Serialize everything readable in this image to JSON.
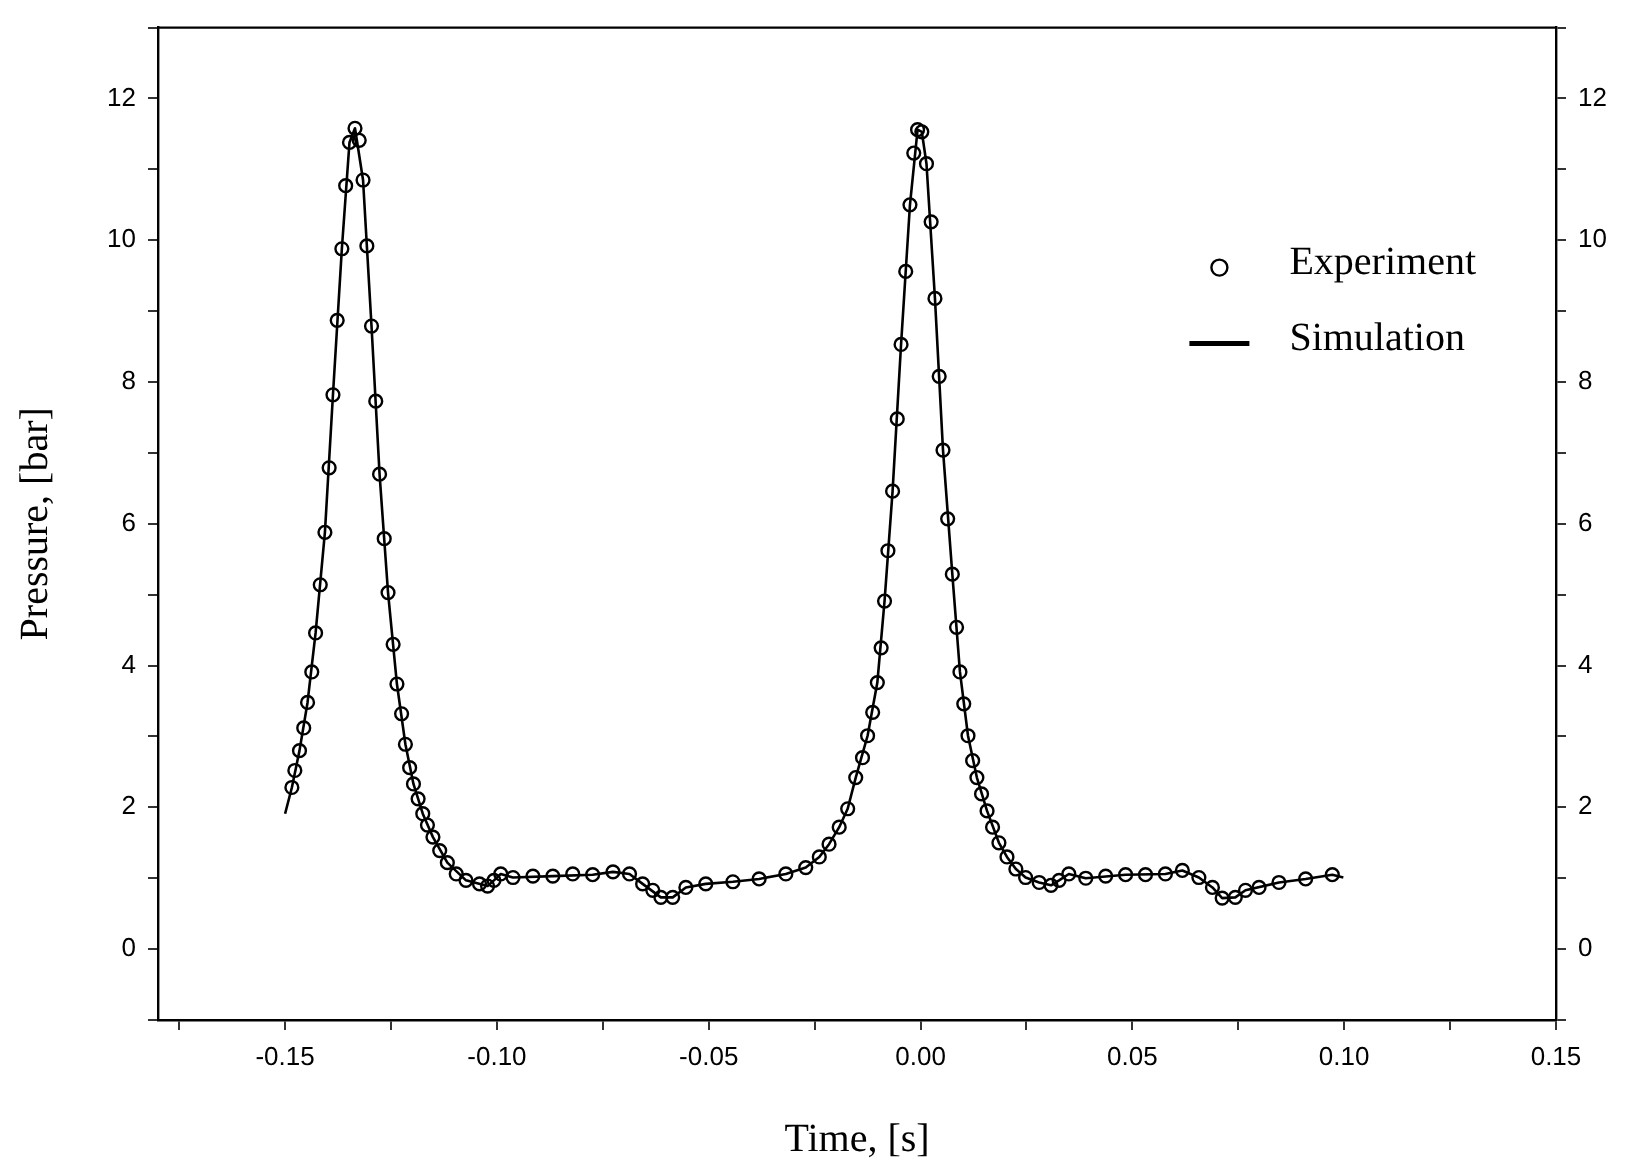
{
  "chart_data": {
    "type": "scatter",
    "xlabel": "Time, [s]",
    "ylabel": "Pressure, [bar]",
    "xlim": [
      -0.18,
      0.15
    ],
    "xticks": [
      {
        "value": -0.175,
        "label": null
      },
      {
        "value": -0.15,
        "label": "-0.15"
      },
      {
        "value": -0.125,
        "label": null
      },
      {
        "value": -0.1,
        "label": "-0.10"
      },
      {
        "value": -0.075,
        "label": null
      },
      {
        "value": -0.05,
        "label": "-0.05"
      },
      {
        "value": -0.025,
        "label": null
      },
      {
        "value": 0,
        "label": "0.00"
      },
      {
        "value": 0.025,
        "label": null
      },
      {
        "value": 0.05,
        "label": "0.05"
      },
      {
        "value": 0.075,
        "label": null
      },
      {
        "value": 0.1,
        "label": "0.10"
      },
      {
        "value": 0.125,
        "label": null
      },
      {
        "value": 0.15,
        "label": "0.15"
      }
    ],
    "ylim": [
      -1,
      13
    ],
    "yticks": [
      {
        "value": -1,
        "label": null
      },
      0,
      {
        "value": 1,
        "label": null
      },
      2,
      {
        "value": 3,
        "label": null
      },
      4,
      {
        "value": 5,
        "label": null
      },
      6,
      {
        "value": 7,
        "label": null
      },
      8,
      {
        "value": 9,
        "label": null
      },
      10,
      {
        "value": 11,
        "label": null
      },
      12,
      {
        "value": 13,
        "label": null
      }
    ],
    "y2lim": [
      -1,
      13
    ],
    "y2ticks": [
      {
        "value": -1,
        "label": null
      },
      0,
      {
        "value": 1,
        "label": null
      },
      2,
      {
        "value": 3,
        "label": null
      },
      4,
      {
        "value": 5,
        "label": null
      },
      6,
      {
        "value": 7,
        "label": null
      },
      8,
      {
        "value": 9,
        "label": null
      },
      10,
      {
        "value": 11,
        "label": null
      },
      12,
      {
        "value": 13,
        "label": null
      }
    ],
    "grid": false,
    "legend": "top right",
    "series": [
      {
        "name": "Experiment",
        "type": "scatter",
        "marker": "circle",
        "color": "#000000",
        "x": [
          -0.1484,
          -0.1477,
          -0.1466,
          -0.1456,
          -0.1447,
          -0.1437,
          -0.1428,
          -0.1417,
          -0.1406,
          -0.1396,
          -0.1387,
          -0.1377,
          -0.1366,
          -0.1357,
          -0.1348,
          -0.1335,
          -0.1325,
          -0.1316,
          -0.1307,
          -0.1296,
          -0.1286,
          -0.1277,
          -0.1266,
          -0.1257,
          -0.1245,
          -0.1236,
          -0.1225,
          -0.1216,
          -0.1206,
          -0.1197,
          -0.1186,
          -0.1175,
          -0.1164,
          -0.1151,
          -0.1135,
          -0.1117,
          -0.1096,
          -0.1073,
          -0.1041,
          -0.1022,
          -0.1007,
          -0.0991,
          -0.0962,
          -0.0915,
          -0.0868,
          -0.0821,
          -0.0774,
          -0.0726,
          -0.0687,
          -0.0656,
          -0.0632,
          -0.0613,
          -0.0585,
          -0.0554,
          -0.0507,
          -0.0443,
          -0.0381,
          -0.0318,
          -0.0271,
          -0.0239,
          -0.0216,
          -0.0192,
          -0.0172,
          -0.0153,
          -0.0137,
          -0.0125,
          -0.0113,
          -0.0102,
          -0.0093,
          -0.0085,
          -0.0077,
          -0.0066,
          -0.0055,
          -0.0046,
          -0.0035,
          -0.0025,
          -0.0016,
          -0.0007,
          0.0003,
          0.0014,
          0.0025,
          0.0034,
          0.0044,
          0.0053,
          0.0064,
          0.0075,
          0.0085,
          0.0093,
          0.0102,
          0.0112,
          0.0123,
          0.0133,
          0.0144,
          0.0157,
          0.017,
          0.0185,
          0.0204,
          0.0225,
          0.0248,
          0.028,
          0.0308,
          0.0327,
          0.035,
          0.039,
          0.0437,
          0.0484,
          0.0531,
          0.0578,
          0.0618,
          0.0657,
          0.0689,
          0.0712,
          0.0743,
          0.0767,
          0.0799,
          0.0846,
          0.0909,
          0.0972
        ],
        "values": [
          2.28,
          2.52,
          2.8,
          3.12,
          3.48,
          3.91,
          4.46,
          5.14,
          5.88,
          6.79,
          7.82,
          8.87,
          9.88,
          10.77,
          11.38,
          11.58,
          11.41,
          10.85,
          9.92,
          8.79,
          7.73,
          6.7,
          5.79,
          5.03,
          4.3,
          3.74,
          3.32,
          2.89,
          2.56,
          2.33,
          2.12,
          1.91,
          1.75,
          1.58,
          1.39,
          1.22,
          1.06,
          0.97,
          0.92,
          0.89,
          0.97,
          1.06,
          1.01,
          1.03,
          1.03,
          1.06,
          1.05,
          1.09,
          1.06,
          0.92,
          0.83,
          0.73,
          0.73,
          0.87,
          0.92,
          0.95,
          0.99,
          1.06,
          1.15,
          1.3,
          1.48,
          1.72,
          1.98,
          2.42,
          2.7,
          3.01,
          3.34,
          3.76,
          4.25,
          4.91,
          5.62,
          6.46,
          7.48,
          8.53,
          9.56,
          10.5,
          11.23,
          11.56,
          11.53,
          11.08,
          10.26,
          9.18,
          8.08,
          7.04,
          6.07,
          5.29,
          4.54,
          3.91,
          3.46,
          3.01,
          2.66,
          2.42,
          2.19,
          1.95,
          1.72,
          1.5,
          1.3,
          1.13,
          1.01,
          0.94,
          0.9,
          0.97,
          1.06,
          1,
          1.03,
          1.05,
          1.05,
          1.06,
          1.11,
          1.01,
          0.87,
          0.72,
          0.73,
          0.83,
          0.87,
          0.94,
          0.99,
          1.05
        ]
      },
      {
        "name": "Simulation",
        "type": "line",
        "marker": "none",
        "line_style": "solid",
        "color": "#000000",
        "x": [
          -0.15,
          -0.1484,
          -0.1466,
          -0.1447,
          -0.1428,
          -0.1406,
          -0.1387,
          -0.1366,
          -0.1348,
          -0.1335,
          -0.1316,
          -0.1296,
          -0.1277,
          -0.1257,
          -0.1236,
          -0.1216,
          -0.1197,
          -0.1175,
          -0.1151,
          -0.1117,
          -0.1073,
          -0.1022,
          -0.1007,
          -0.0991,
          -0.0962,
          -0.0868,
          -0.0774,
          -0.0726,
          -0.0687,
          -0.0656,
          -0.0613,
          -0.0585,
          -0.0554,
          -0.0507,
          -0.0443,
          -0.0381,
          -0.0318,
          -0.0271,
          -0.0239,
          -0.0216,
          -0.0192,
          -0.0172,
          -0.0153,
          -0.0125,
          -0.0102,
          -0.0085,
          -0.0066,
          -0.0046,
          -0.0025,
          -0.0007,
          0.0003,
          0.0014,
          0.0034,
          0.0053,
          0.0075,
          0.0093,
          0.0112,
          0.0133,
          0.0157,
          0.0185,
          0.0204,
          0.0225,
          0.0248,
          0.028,
          0.0308,
          0.0327,
          0.035,
          0.039,
          0.0484,
          0.0578,
          0.0618,
          0.0657,
          0.0689,
          0.0712,
          0.0743,
          0.0767,
          0.0846,
          0.0909,
          0.0972,
          0.0998
        ],
        "values": [
          1.91,
          2.28,
          2.8,
          3.48,
          4.46,
          5.88,
          7.82,
          9.88,
          11.38,
          11.58,
          10.85,
          8.79,
          6.7,
          5.03,
          3.74,
          2.89,
          2.33,
          1.91,
          1.58,
          1.22,
          0.97,
          0.89,
          0.97,
          1.06,
          1.01,
          1.03,
          1.05,
          1.09,
          1.06,
          0.92,
          0.73,
          0.73,
          0.87,
          0.92,
          0.95,
          0.99,
          1.06,
          1.15,
          1.3,
          1.48,
          1.72,
          1.98,
          2.42,
          3.01,
          3.76,
          4.91,
          6.46,
          8.53,
          10.5,
          11.56,
          11.53,
          11.08,
          9.18,
          7.04,
          5.29,
          3.91,
          3.01,
          2.42,
          1.95,
          1.5,
          1.3,
          1.13,
          1.01,
          0.94,
          0.9,
          0.97,
          1.06,
          1,
          1.05,
          1.06,
          1.11,
          1.01,
          0.87,
          0.72,
          0.73,
          0.83,
          0.94,
          0.99,
          1.05,
          1.01
        ]
      }
    ]
  }
}
